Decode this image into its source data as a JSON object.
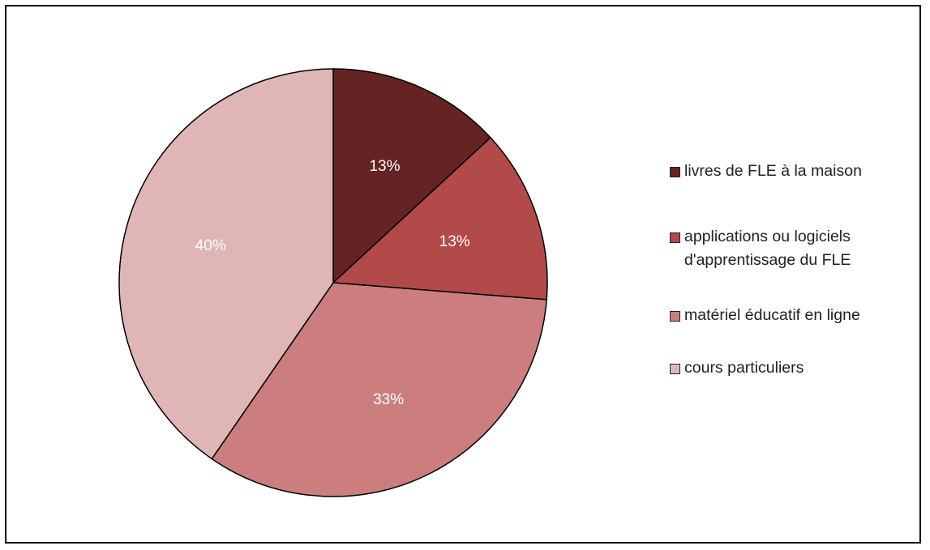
{
  "chart_data": {
    "type": "pie",
    "categories": [
      "livres de FLE à la maison",
      "applications ou logiciels d'apprentissage du FLE",
      "matériel éducatif en ligne",
      "cours particuliers"
    ],
    "values": [
      13,
      13,
      33,
      40
    ],
    "data_labels": [
      "13%",
      "13%",
      "33%",
      "40%"
    ],
    "colors": [
      "#652323",
      "#b34a4a",
      "#cc7e7e",
      "#dfb5b5"
    ],
    "legend_position": "right",
    "title": ""
  }
}
